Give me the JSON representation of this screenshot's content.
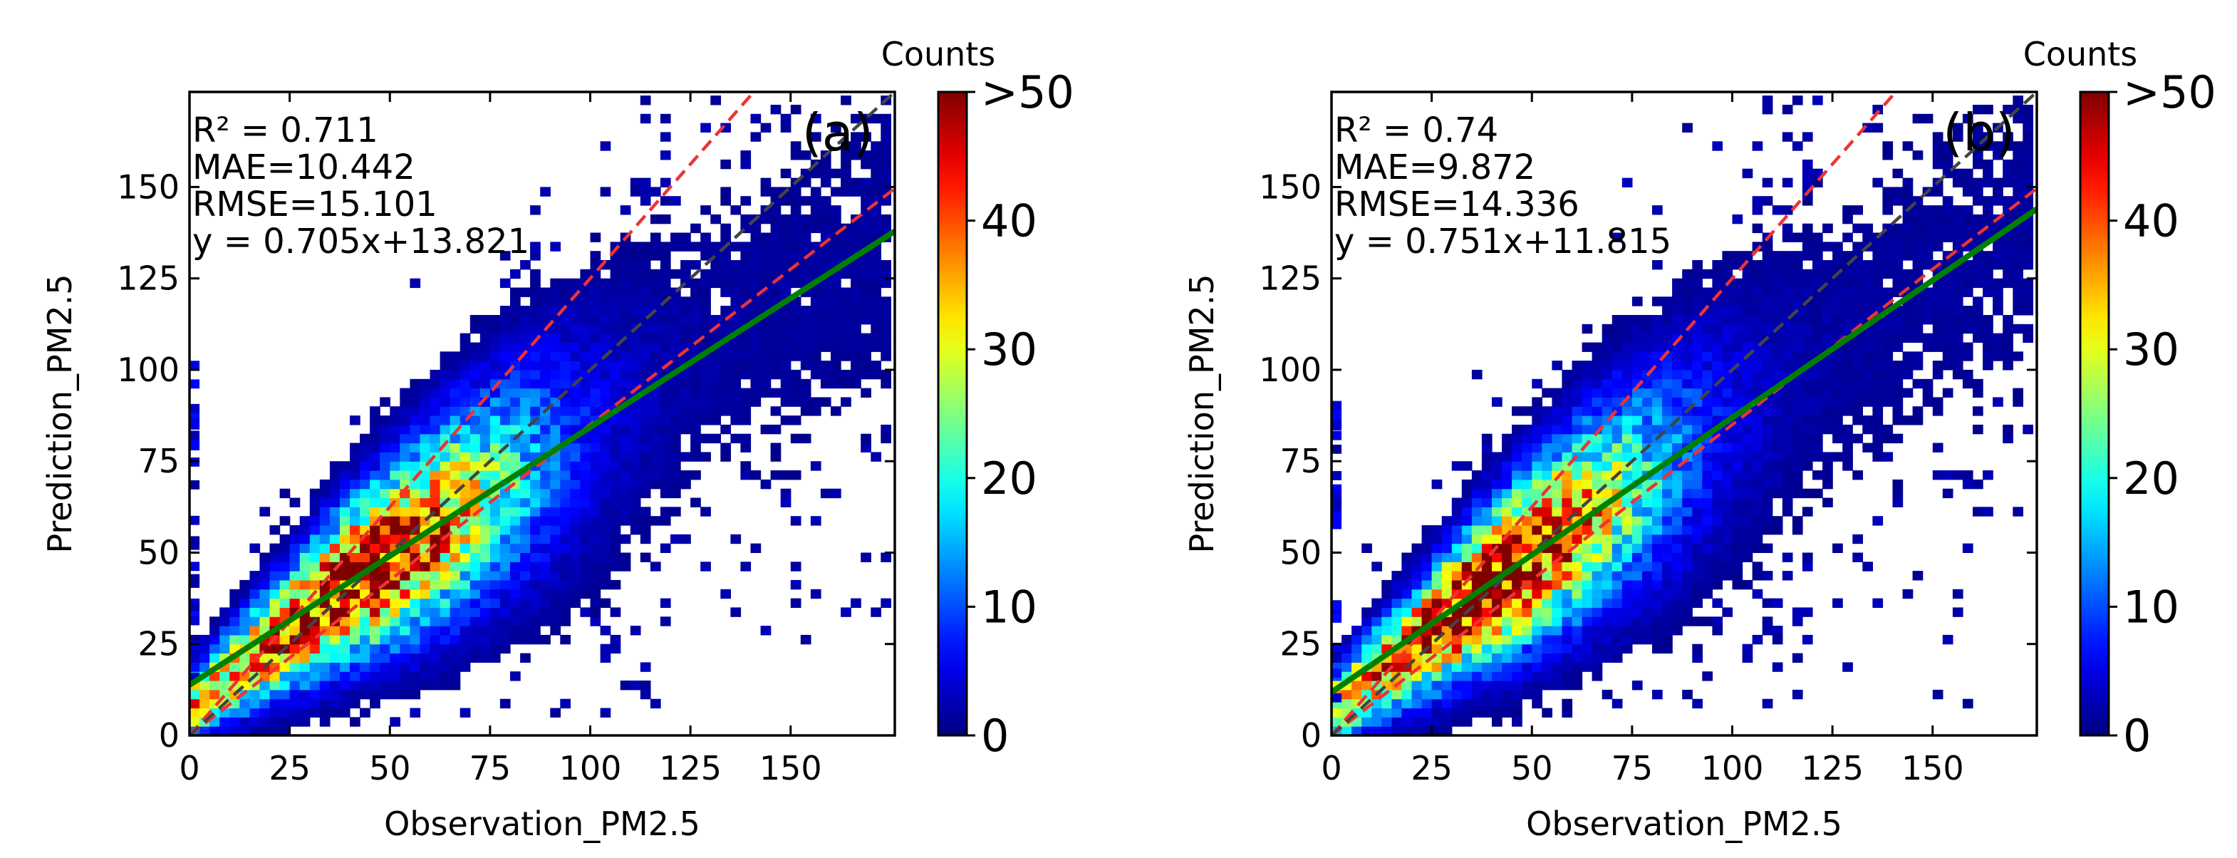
{
  "chart_data": [
    {
      "type": "heatmap",
      "panel_label": "(a)",
      "xlabel": "Observation_PM2.5",
      "ylabel": "Prediction_PM2.5",
      "xlim": [
        0,
        176
      ],
      "ylim": [
        0,
        176
      ],
      "xticks": [
        0,
        25,
        50,
        75,
        100,
        125,
        150
      ],
      "yticks": [
        0,
        25,
        50,
        75,
        100,
        125,
        150
      ],
      "stats": [
        "R² = 0.711",
        "MAE=10.442",
        "RMSE=15.101",
        "y = 0.705x+13.821"
      ],
      "fit_line": {
        "slope": 0.705,
        "intercept": 13.821
      },
      "one_to_one_line": {
        "slope": 1,
        "intercept": 0
      },
      "bound_lines": [
        {
          "slope": 1.25,
          "intercept": 0
        },
        {
          "slope": 0.85,
          "intercept": 0
        }
      ],
      "colorbar": {
        "label": "Counts",
        "ticks": [
          "0",
          "10",
          "20",
          "30",
          "40",
          ">50"
        ],
        "range": [
          0,
          50
        ],
        "colormap": "jet"
      },
      "density_model": {
        "mean_slope": 0.705,
        "mean_intercept": 13.821,
        "peak_x": 42,
        "peak_count": 50,
        "seed": 7
      },
      "grid": false
    },
    {
      "type": "heatmap",
      "panel_label": "(b)",
      "xlabel": "Observation_PM2.5",
      "ylabel": "Prediction_PM2.5",
      "xlim": [
        0,
        176
      ],
      "ylim": [
        0,
        176
      ],
      "xticks": [
        0,
        25,
        50,
        75,
        100,
        125,
        150
      ],
      "yticks": [
        0,
        25,
        50,
        75,
        100,
        125,
        150
      ],
      "stats": [
        "R² = 0.74",
        "MAE=9.872",
        "RMSE=14.336",
        "y = 0.751x+11.815"
      ],
      "fit_line": {
        "slope": 0.751,
        "intercept": 11.815
      },
      "one_to_one_line": {
        "slope": 1,
        "intercept": 0
      },
      "bound_lines": [
        {
          "slope": 1.25,
          "intercept": 0
        },
        {
          "slope": 0.85,
          "intercept": 0
        }
      ],
      "colorbar": {
        "label": "Counts",
        "ticks": [
          "0",
          "10",
          "20",
          "30",
          "40",
          ">50"
        ],
        "range": [
          0,
          50
        ],
        "colormap": "jet"
      },
      "density_model": {
        "mean_slope": 0.751,
        "mean_intercept": 11.815,
        "peak_x": 40,
        "peak_count": 50,
        "seed": 11
      },
      "grid": false
    }
  ],
  "colors": {
    "fit_line": "#008000",
    "one_to_one_line": "#444444",
    "bound_lines": "#ee3333",
    "axes": "#000000"
  }
}
